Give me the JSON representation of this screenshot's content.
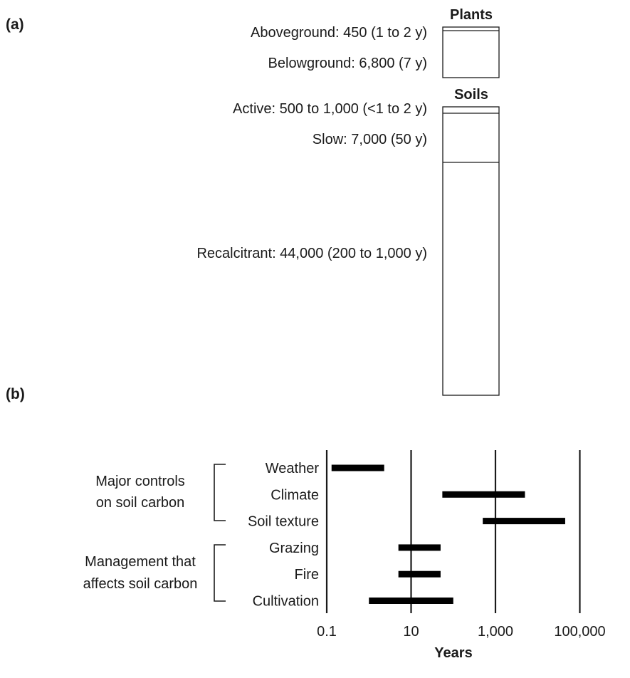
{
  "chart_data": [
    {
      "panel": "(a)",
      "type": "bar",
      "groups": [
        {
          "title": "Plants",
          "pools": [
            {
              "label": "Aboveground: 450 (1 to 2 y)",
              "value": 450
            },
            {
              "label": "Belowground: 6,800 (7 y)",
              "value": 6800
            }
          ]
        },
        {
          "title": "Soils",
          "pools": [
            {
              "label": "Active: 500 to 1,000 (<1 to 2 y)",
              "value": 750
            },
            {
              "label": "Slow: 7,000 (50 y)",
              "value": 7000
            },
            {
              "label": "Recalcitrant: 44,000 (200 to 1,000 y)",
              "value": 44000
            }
          ]
        }
      ]
    },
    {
      "panel": "(b)",
      "type": "bar",
      "orientation": "horizontal-range",
      "xscale": "log",
      "xlim": [
        0.1,
        200000
      ],
      "xticks": [
        0.1,
        10,
        1000,
        100000
      ],
      "xtick_labels": [
        "0.1",
        "10",
        "1,000",
        "100,000"
      ],
      "xlabel": "Years",
      "grid": true,
      "groups": [
        {
          "label_lines": [
            "Major controls",
            "on soil carbon"
          ],
          "categories": [
            "Weather",
            "Climate",
            "Soil texture"
          ]
        },
        {
          "label_lines": [
            "Management that",
            "affects soil carbon"
          ],
          "categories": [
            "Grazing",
            "Fire",
            "Cultivation"
          ]
        }
      ],
      "categories": [
        "Weather",
        "Climate",
        "Soil texture",
        "Grazing",
        "Fire",
        "Cultivation"
      ],
      "ranges": [
        [
          0.13,
          2.3
        ],
        [
          55,
          5000
        ],
        [
          500,
          45000
        ],
        [
          5,
          50
        ],
        [
          5,
          50
        ],
        [
          1,
          100
        ]
      ]
    }
  ]
}
